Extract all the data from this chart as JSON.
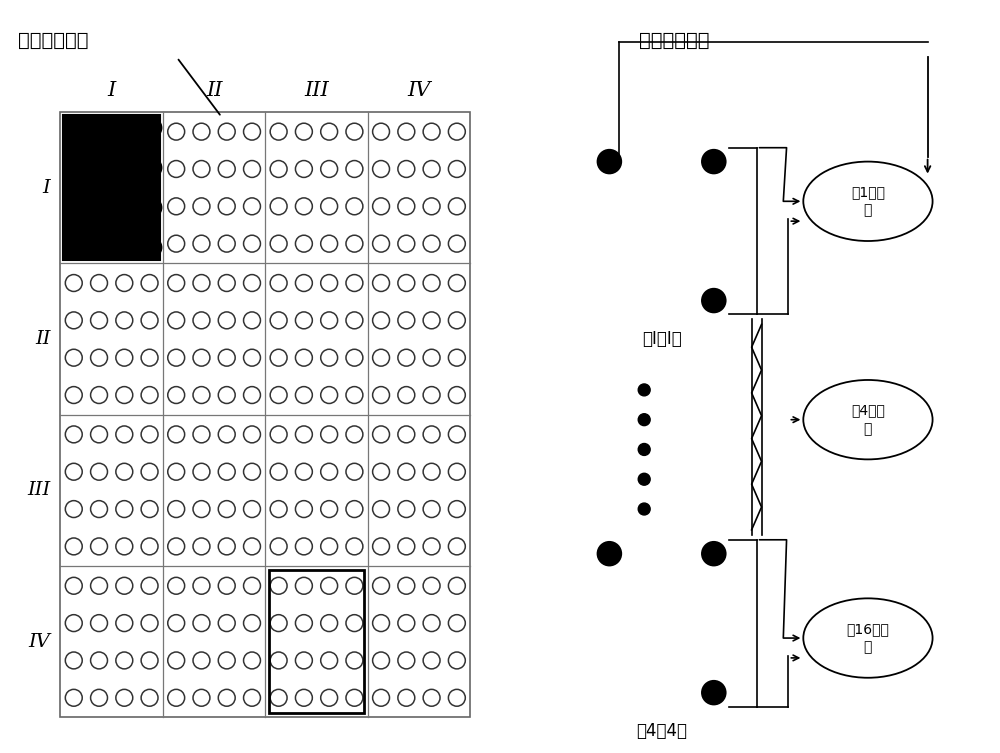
{
  "title_left": "光纤阵列前端",
  "title_right": "光纤阵列后端",
  "col_labels": [
    "I",
    "II",
    "III",
    "IV"
  ],
  "row_labels": [
    "I",
    "II",
    "III",
    "IV"
  ],
  "bundle_labels": [
    "第1捆光\n纤",
    "第4捆光\n纤",
    "第16捆光\n纤"
  ],
  "label_I_I": "（I，I）",
  "label_4_4": "（4，4）",
  "bg_color": "#ffffff"
}
